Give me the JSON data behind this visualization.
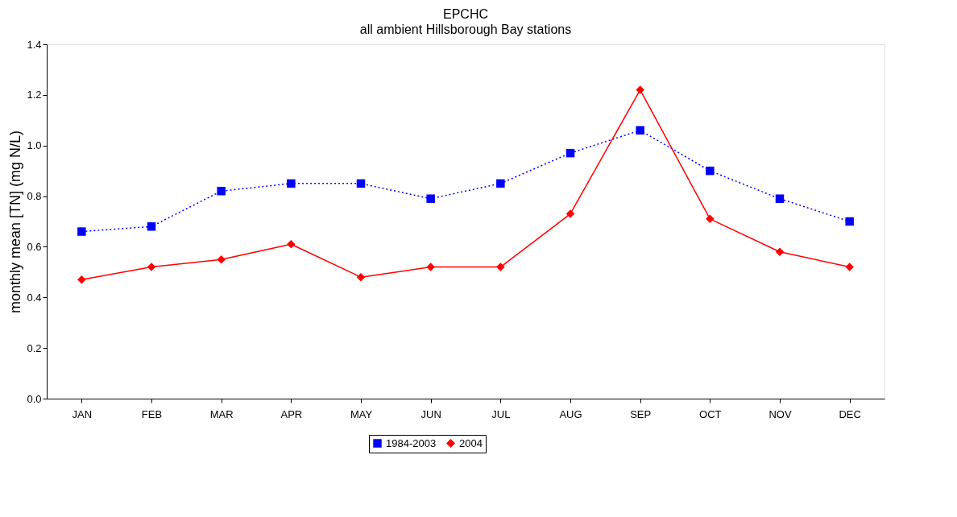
{
  "chart_data": {
    "type": "line",
    "title": "EPCHC",
    "subtitle": "all ambient Hillsborough Bay stations",
    "ylabel": "monthly mean [TN] (mg N/L)",
    "categories": [
      "JAN",
      "FEB",
      "MAR",
      "APR",
      "MAY",
      "JUN",
      "JUL",
      "AUG",
      "SEP",
      "OCT",
      "NOV",
      "DEC"
    ],
    "series": [
      {
        "name": "1984-2003",
        "color": "#0000ff",
        "marker": "square",
        "line_style": "dotted",
        "values": [
          0.66,
          0.68,
          0.82,
          0.85,
          0.85,
          0.79,
          0.85,
          0.97,
          1.06,
          0.9,
          0.79,
          0.7
        ]
      },
      {
        "name": "2004",
        "color": "#ff0000",
        "marker": "diamond",
        "line_style": "solid",
        "values": [
          0.47,
          0.52,
          0.55,
          0.61,
          0.48,
          0.52,
          0.52,
          0.73,
          1.22,
          0.71,
          0.58,
          0.52
        ]
      }
    ],
    "ylim": [
      0,
      1.4
    ],
    "yticks": [
      {
        "value": 0,
        "label": "0.0"
      },
      {
        "value": 0.2,
        "label": "0.2"
      },
      {
        "value": 0.4,
        "label": "0.4"
      },
      {
        "value": 0.6,
        "label": "0.6"
      },
      {
        "value": 0.8,
        "label": "0.8"
      },
      {
        "value": 1.0,
        "label": "1.0"
      },
      {
        "value": 1.2,
        "label": "1.2"
      },
      {
        "value": 1.4,
        "label": "1.4"
      }
    ],
    "grid": false,
    "legend": "bottom"
  }
}
